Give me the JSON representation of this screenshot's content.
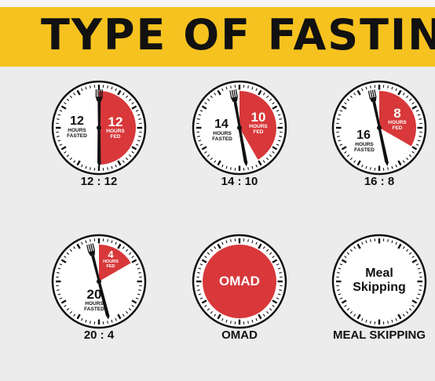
{
  "title": "TYPE OF FASTING",
  "colors": {
    "banner": "#f6c21f",
    "fed": "#d8383a",
    "background": "#ececec",
    "ink": "#111111"
  },
  "icons": {
    "marker": "fork-icon"
  },
  "schedules": [
    {
      "id": "12-12",
      "caption": "12 : 12",
      "fasted_hours": "12",
      "fasted_label": "HOURS\nFASTED",
      "fed_hours": "12",
      "fed_label": "HOURS\nFED",
      "fed_fraction": 0.5
    },
    {
      "id": "14-10",
      "caption": "14 : 10",
      "fasted_hours": "14",
      "fasted_label": "HOURS\nFASTED",
      "fed_hours": "10",
      "fed_label": "HOURS\nFED",
      "fed_fraction": 0.4167
    },
    {
      "id": "16-8",
      "caption": "16 : 8",
      "fasted_hours": "16",
      "fasted_label": "HOURS\nFASTED",
      "fed_hours": "8",
      "fed_label": "HOURS\nFED",
      "fed_fraction": 0.3333
    },
    {
      "id": "20-4",
      "caption": "20 : 4",
      "fasted_hours": "20",
      "fasted_label": "HOURS\nFASTED",
      "fed_hours": "4",
      "fed_label": "HOURS\nFED",
      "fed_fraction": 0.1667
    },
    {
      "id": "omad",
      "caption": "OMAD",
      "center_text": "OMAD"
    },
    {
      "id": "meal-skipping",
      "caption": "MEAL SKIPPING",
      "center_text": "Meal\nSkipping"
    }
  ]
}
